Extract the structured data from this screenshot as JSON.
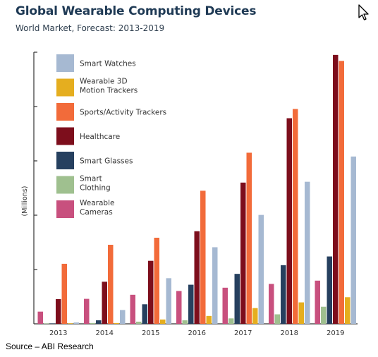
{
  "header": {
    "title": "Global Wearable Computing Devices",
    "subtitle": "World Market, Forecast: 2013-2019"
  },
  "footer": {
    "source": "Source – ABI Research"
  },
  "cursor_icon": "mouse-pointer-icon",
  "chart_data": {
    "type": "bar",
    "title": "Global Wearable Computing Devices",
    "subtitle": "World Market, Forecast: 2013-2019",
    "ylabel": "(Millions)",
    "xlabel": "",
    "categories": [
      "2013",
      "2014",
      "2015",
      "2016",
      "2017",
      "2018",
      "2019"
    ],
    "ylim": [
      0,
      100
    ],
    "y_ticks_count": 5,
    "grid": false,
    "legend_position": "top-left",
    "series": [
      {
        "name": "Wearable Cameras",
        "color": "#c8507e",
        "values": [
          4.5,
          9.2,
          10.7,
          12.1,
          13.3,
          14.7,
          15.9
        ]
      },
      {
        "name": "Smart Clothing",
        "color": "#9fc08f",
        "values": [
          0.1,
          0.3,
          0.8,
          1.3,
          2.0,
          3.5,
          6.3
        ]
      },
      {
        "name": "Smart Glasses",
        "color": "#26405f",
        "values": [
          0.1,
          1.3,
          7.2,
          14.4,
          18.4,
          21.6,
          24.8
        ]
      },
      {
        "name": "Healthcare",
        "color": "#7d0e1c",
        "values": [
          9.1,
          15.5,
          23.2,
          34.1,
          52.0,
          75.7,
          99.0
        ]
      },
      {
        "name": "Sports/Activity Trackers",
        "color": "#f26b3a",
        "values": [
          22.1,
          29.1,
          31.7,
          49.0,
          63.0,
          79.1,
          96.8
        ]
      },
      {
        "name": "Wearable 3D Motion Trackers",
        "color": "#e5ae1f",
        "values": [
          0.2,
          0.3,
          1.6,
          2.9,
          5.8,
          7.9,
          9.8
        ]
      },
      {
        "name": "Smart Watches",
        "color": "#a6b9d2",
        "values": [
          0.5,
          5.1,
          16.8,
          28.2,
          40.1,
          52.3,
          61.6
        ]
      }
    ],
    "legend": [
      {
        "label": "Smart Watches",
        "color": "#a6b9d2"
      },
      {
        "label": "Wearable 3D Motion Trackers",
        "color": "#e5ae1f"
      },
      {
        "label": "Sports/Activity Trackers",
        "color": "#f26b3a"
      },
      {
        "label": "Healthcare",
        "color": "#7d0e1c"
      },
      {
        "label": "Smart Glasses",
        "color": "#26405f"
      },
      {
        "label": "Smart Clothing",
        "color": "#9fc08f"
      },
      {
        "label": "Wearable Cameras",
        "color": "#c8507e"
      }
    ]
  }
}
